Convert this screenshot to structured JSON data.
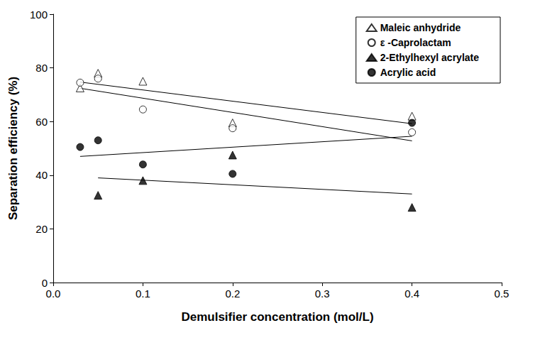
{
  "chart_data": {
    "type": "scatter",
    "x_label": "Demulsifier concentration (mol/L)",
    "y_label": "Separation efficiency (%)",
    "xlim": [
      0,
      0.5
    ],
    "xticks": [
      {
        "value": 0,
        "label": "0.0"
      },
      0.1,
      0.2,
      0.3,
      0.4,
      0.5
    ],
    "ylim": [
      0,
      100
    ],
    "yticks": [
      0,
      20,
      40,
      60,
      80,
      100
    ],
    "grid": false,
    "legend": "top-right",
    "series": [
      {
        "name": "Maleic anhydride",
        "color": "#000000",
        "marker": "triangle-open",
        "x": [
          0.03,
          0.05,
          0.1,
          0.2,
          0.4
        ],
        "values": [
          72.5,
          78,
          75,
          59.5,
          62
        ],
        "trend": {
          "x": [
            0.03,
            0.4
          ],
          "values": [
            74.7,
            59.2
          ]
        }
      },
      {
        "name": "ε -Caprolactam",
        "color": "#000000",
        "marker": "circle-open",
        "x": [
          0.03,
          0.05,
          0.1,
          0.2,
          0.4
        ],
        "values": [
          74.5,
          76,
          64.5,
          57.5,
          56
        ],
        "trend": {
          "x": [
            0.03,
            0.4
          ],
          "values": [
            72.4,
            52.8
          ]
        }
      },
      {
        "name": "2-Ethylhexyl acrylate",
        "color": "#000000",
        "marker": "triangle",
        "x": [
          0.05,
          0.1,
          0.2,
          0.4
        ],
        "values": [
          32.5,
          38,
          47.5,
          28
        ],
        "trend": {
          "x": [
            0.05,
            0.4
          ],
          "values": [
            39,
            33
          ]
        }
      },
      {
        "name": "Acrylic acid",
        "color": "#000000",
        "marker": "circle",
        "x": [
          0.03,
          0.05,
          0.1,
          0.2,
          0.4
        ],
        "values": [
          50.5,
          53,
          44,
          40.5,
          59.5
        ],
        "trend": {
          "x": [
            0.03,
            0.4
          ],
          "values": [
            47,
            54.5
          ]
        }
      }
    ]
  }
}
